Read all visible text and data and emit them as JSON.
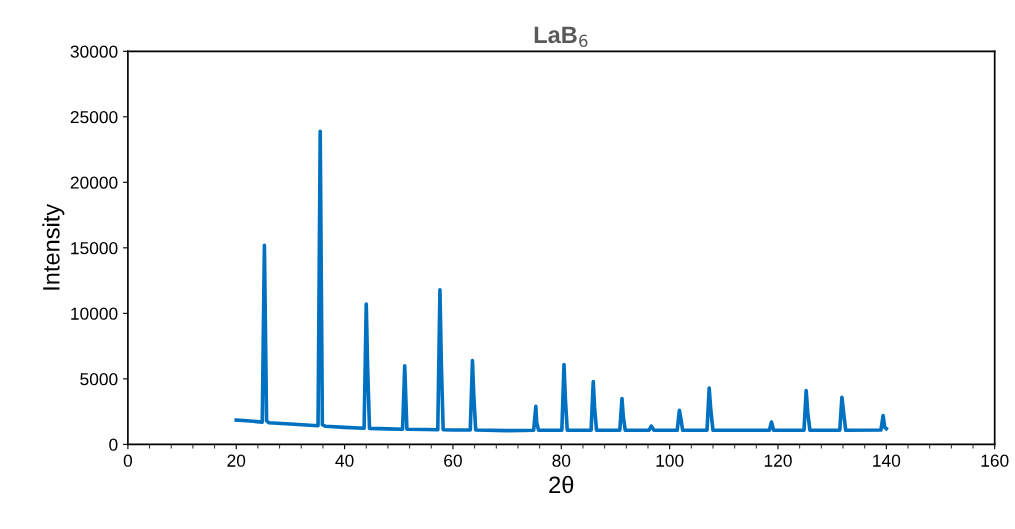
{
  "chart_data": {
    "type": "line",
    "title": "LaB$_{6}$",
    "xlabel": "2θ",
    "ylabel": "Intensity",
    "xlim": [
      0,
      160
    ],
    "xticks": [
      0,
      20,
      40,
      60,
      80,
      100,
      120,
      140,
      160
    ],
    "ylim": [
      0,
      30000
    ],
    "yticks": [
      0,
      5000,
      10000,
      15000,
      20000,
      25000,
      30000
    ],
    "grid": false,
    "legend": false,
    "marker": "none",
    "line_style": "solid",
    "series": [
      {
        "color": "#0070c0",
        "x": [
          20,
          22,
          24.8,
          25.2,
          25.6,
          26,
          30,
          35.1,
          35.5,
          35.9,
          36.5,
          40,
          43.6,
          44.0,
          44.25,
          44.6,
          48,
          50.7,
          51.1,
          51.5,
          55,
          57.2,
          57.6,
          57.85,
          58.2,
          60,
          63.2,
          63.6,
          63.85,
          64.2,
          70,
          74.9,
          75.3,
          75.45,
          75.8,
          80.1,
          80.5,
          80.75,
          81.1,
          85.5,
          85.9,
          86.15,
          86.5,
          90.8,
          91.2,
          91.45,
          91.8,
          96.2,
          96.6,
          97.1,
          101.4,
          101.8,
          102.1,
          102.4,
          106.9,
          107.3,
          107.6,
          108,
          118.4,
          118.8,
          119.2,
          124.8,
          125.2,
          125.5,
          125.9,
          131.4,
          131.8,
          132.15,
          132.5,
          139,
          139.4,
          139.7,
          140
        ],
        "values": [
          1850,
          1800,
          1700,
          15200,
          1800,
          1650,
          1550,
          1420,
          23900,
          1500,
          1380,
          1300,
          1230,
          10700,
          5900,
          1220,
          1180,
          1150,
          6000,
          1150,
          1130,
          1120,
          11800,
          6300,
          1120,
          1100,
          1100,
          6400,
          3700,
          1100,
          1050,
          1080,
          2900,
          1700,
          1080,
          1080,
          6100,
          3500,
          1080,
          1080,
          4800,
          2800,
          1080,
          1080,
          3500,
          2100,
          1080,
          1080,
          1400,
          1080,
          1080,
          2600,
          1900,
          1080,
          1080,
          4300,
          2600,
          1080,
          1080,
          1700,
          1080,
          1080,
          4100,
          2400,
          1080,
          1080,
          3600,
          2300,
          1080,
          1100,
          2200,
          1300,
          1200
        ]
      }
    ]
  }
}
